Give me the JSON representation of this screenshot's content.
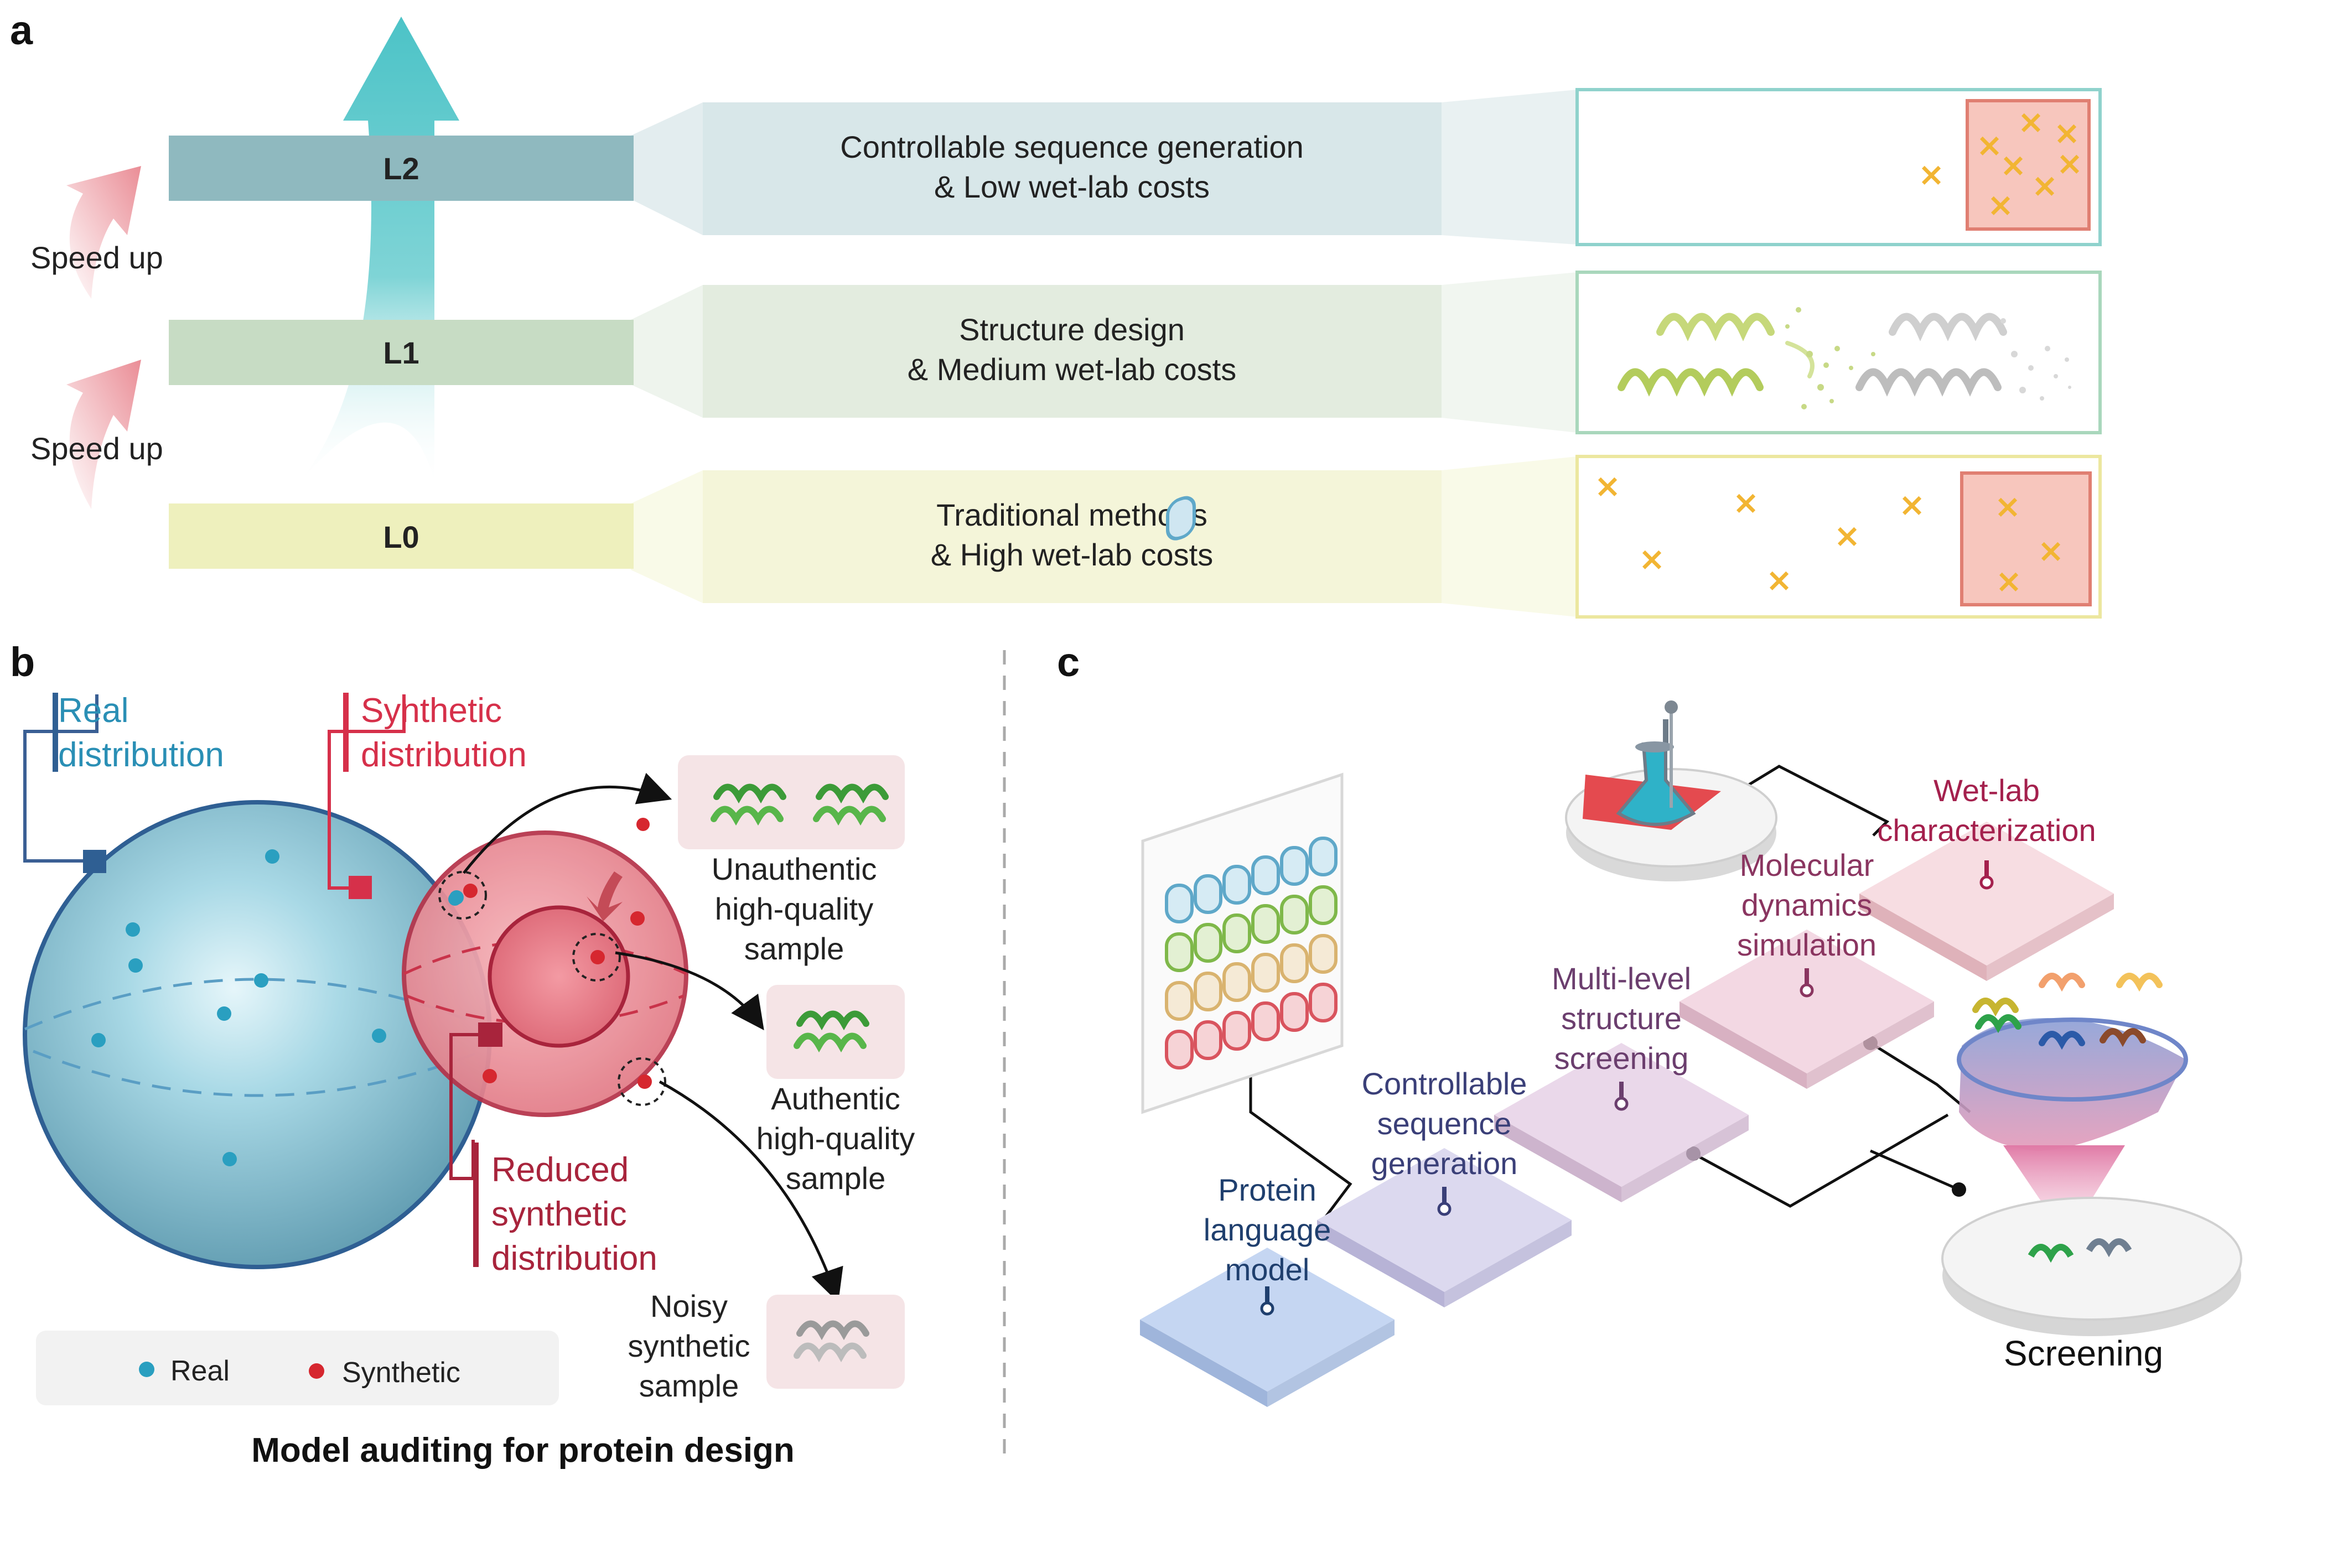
{
  "panels": {
    "a": "a",
    "b": "b",
    "c": "c"
  },
  "panel_a": {
    "levels": [
      {
        "label": "L2",
        "line1": "Controllable sequence generation",
        "line2": "& Low wet-lab costs",
        "color": "#8fb9bf"
      },
      {
        "label": "L1",
        "line1": "Structure design",
        "line2": "& Medium wet-lab costs",
        "color": "#c7dcc4"
      },
      {
        "label": "L0",
        "line1": "Traditional methods",
        "line2": "& High wet-lab costs",
        "color": "#eef0bd"
      }
    ],
    "speed_up_1": "Speed up",
    "speed_up_2": "Speed up",
    "marker": "×"
  },
  "panel_b": {
    "real_label_1": "Real",
    "real_label_2": "distribution",
    "synthetic_label_1": "Synthetic",
    "synthetic_label_2": "distribution",
    "reduced_1": "Reduced",
    "reduced_2": "synthetic",
    "reduced_3": "distribution",
    "unauthentic": [
      "Unauthentic",
      "high-quality",
      "sample"
    ],
    "authentic": [
      "Authentic",
      "high-quality",
      "sample"
    ],
    "noisy": [
      "Noisy",
      "synthetic",
      "sample"
    ],
    "legend": {
      "real": "Real",
      "synthetic": "Synthetic"
    },
    "title": "Model auditing for protein design",
    "colors": {
      "real": "#2a9fc0",
      "synthetic": "#d6272f",
      "real_text": "#2a8fb5",
      "synthetic_text": "#d6304a",
      "reduced_text": "#a8243c"
    }
  },
  "panel_c": {
    "steps": [
      {
        "lines": [
          "Protein",
          "language",
          "model"
        ],
        "color": "#1f3f6e"
      },
      {
        "lines": [
          "Controllable",
          "sequence",
          "generation"
        ],
        "color": "#3a3f78"
      },
      {
        "lines": [
          "Multi-level",
          "structure",
          "screening"
        ],
        "color": "#6b3e6e"
      },
      {
        "lines": [
          "Molecular",
          "dynamics",
          "simulation"
        ],
        "color": "#8a3560"
      },
      {
        "lines": [
          "Wet-lab",
          "characterization"
        ],
        "color": "#a4204d"
      }
    ],
    "screening": "Screening"
  }
}
